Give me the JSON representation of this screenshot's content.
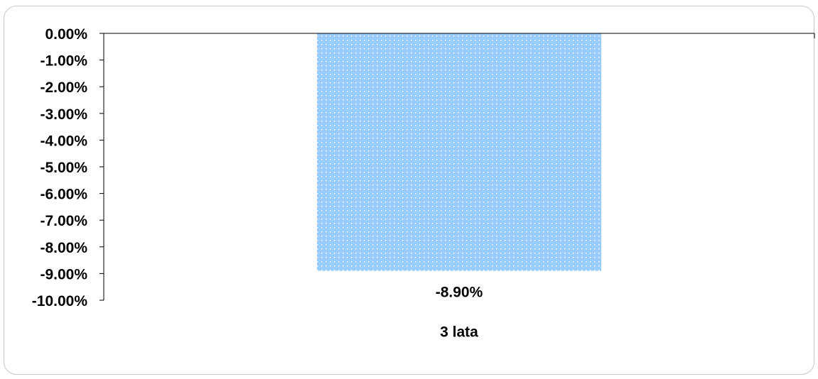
{
  "chart_data": {
    "type": "bar",
    "title": "",
    "xlabel": "",
    "ylabel": "",
    "categories": [
      "3 lata"
    ],
    "values": [
      -8.9
    ],
    "data_labels": [
      "-8.90%"
    ],
    "ylim": [
      -10,
      0
    ],
    "y_ticks": [
      {
        "value": 0,
        "label": "0.00%"
      },
      {
        "value": -1,
        "label": "-1.00%"
      },
      {
        "value": -2,
        "label": "-2.00%"
      },
      {
        "value": -3,
        "label": "-3.00%"
      },
      {
        "value": -4,
        "label": "-4.00%"
      },
      {
        "value": -5,
        "label": "-5.00%"
      },
      {
        "value": -6,
        "label": "-6.00%"
      },
      {
        "value": -7,
        "label": "-7.00%"
      },
      {
        "value": -8,
        "label": "-8.00%"
      },
      {
        "value": -9,
        "label": "-9.00%"
      },
      {
        "value": -10,
        "label": "-10.00%"
      }
    ],
    "grid": false,
    "legend": "none",
    "bar_color": "#99ccff"
  }
}
